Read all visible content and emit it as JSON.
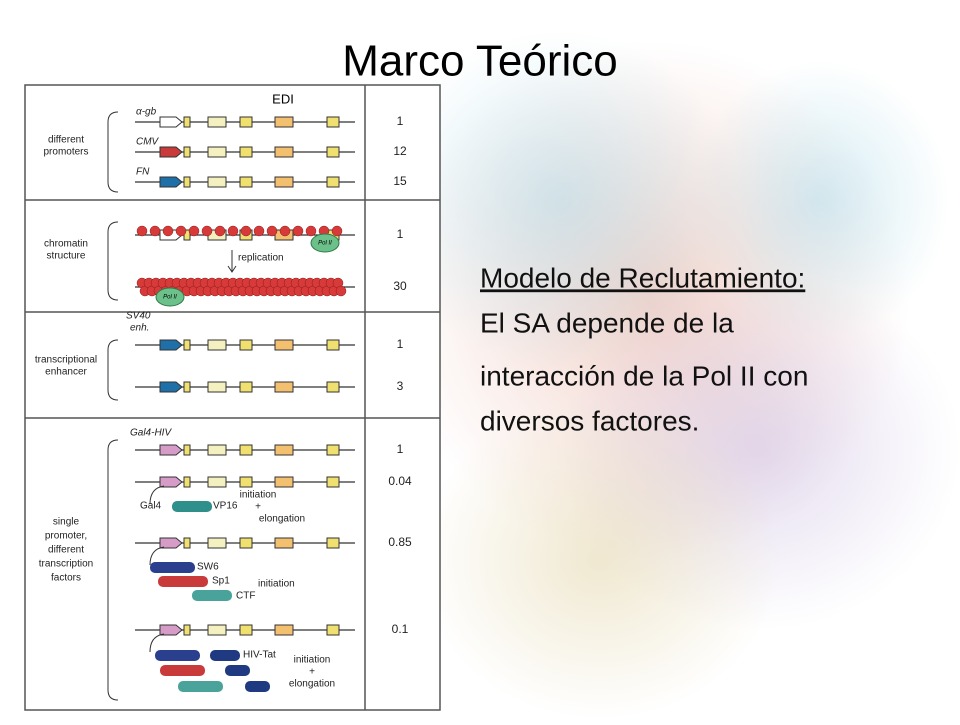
{
  "title": "Marco Teórico",
  "text": {
    "heading": "Modelo de Reclutamiento:",
    "lines": [
      "El SA depende de  la",
      "interacción de la Pol II con",
      "diversos factores."
    ]
  },
  "figure": {
    "header": "EDI",
    "sections": [
      {
        "label": [
          "different",
          "promoters"
        ],
        "rows": [
          {
            "label": "α-gb",
            "value": "1"
          },
          {
            "label": "CMV",
            "value": "12"
          },
          {
            "label": "FN",
            "value": "15"
          }
        ]
      },
      {
        "label": [
          "chromatin",
          "structure"
        ],
        "rows": [
          {
            "value": "1"
          },
          {
            "value": "30"
          }
        ]
      },
      {
        "label": [
          "transcriptional",
          "enhancer"
        ],
        "rows": [
          {
            "value": "1"
          },
          {
            "value": "3"
          }
        ]
      },
      {
        "label": [
          "single",
          "promoter,",
          "different",
          "transcription",
          "factors"
        ],
        "rows": [
          {
            "value": "1"
          },
          {
            "value": "0.04"
          },
          {
            "value": "0.85"
          },
          {
            "value": "0.1"
          }
        ]
      }
    ],
    "annotations": {
      "replication": "replication",
      "pol_ii": "Pol II",
      "sv40": [
        "SV40",
        "enh."
      ],
      "gal4_hiv": "Gal4-HIV",
      "gal4": "Gal4",
      "vp16": "VP16",
      "init_elong_1": [
        "initiation",
        "+",
        "elongation"
      ],
      "sw6": "SW6",
      "sp1": "Sp1",
      "ctf": "CTF",
      "initiation": "initiation",
      "hiv_tat": "HIV-Tat",
      "init_elong_2": [
        "initiation",
        "+",
        "elongation"
      ]
    }
  }
}
